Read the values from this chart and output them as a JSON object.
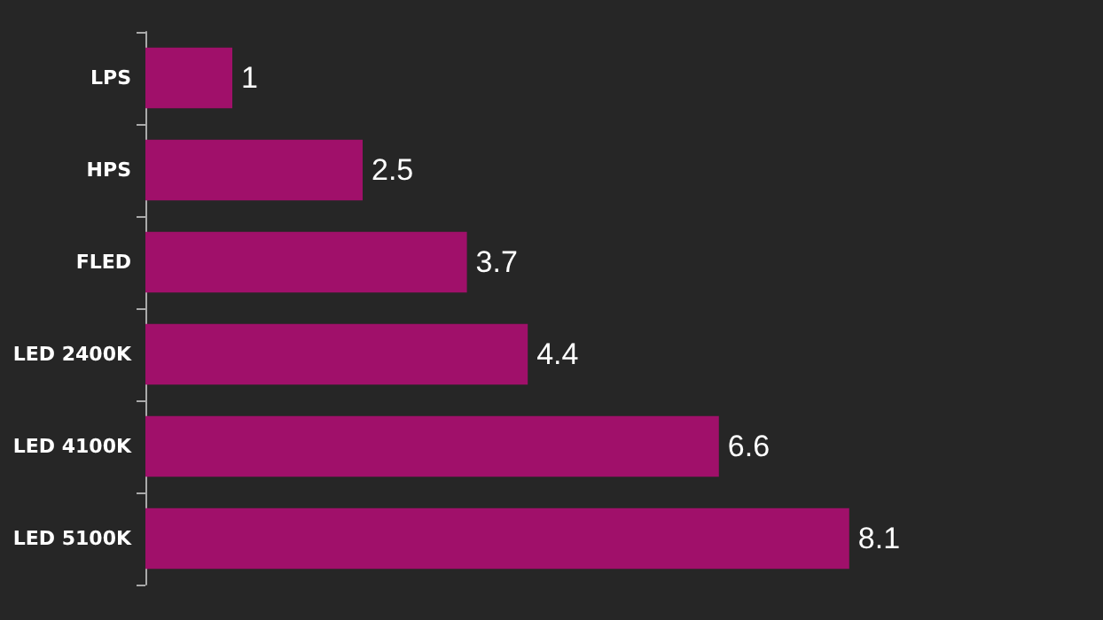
{
  "chart_data": {
    "type": "bar",
    "orientation": "horizontal",
    "categories": [
      "LPS",
      "HPS",
      "FLED",
      "LED 2400K",
      "LED 4100K",
      "LED 5100K"
    ],
    "values": [
      1,
      2.5,
      3.7,
      4.4,
      6.6,
      8.1
    ],
    "color": "#a0106a",
    "data_labels": true
  }
}
